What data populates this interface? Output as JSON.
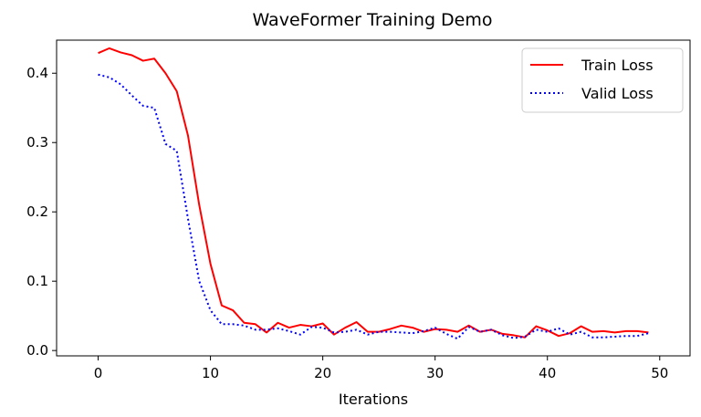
{
  "chart_data": {
    "type": "line",
    "title": "WaveFormer Training Demo",
    "xlabel": "Iterations",
    "ylabel": "",
    "xlim": [
      -3.7,
      52.7
    ],
    "ylim": [
      -0.0077,
      0.4477
    ],
    "xticks": [
      0,
      10,
      20,
      30,
      40,
      50
    ],
    "yticks": [
      0.0,
      0.1,
      0.2,
      0.3,
      0.4
    ],
    "ytick_labels": [
      "0.0",
      "0.1",
      "0.2",
      "0.3",
      "0.4"
    ],
    "grid": false,
    "legend_position": "top-right",
    "x": [
      0,
      1,
      2,
      3,
      4,
      5,
      6,
      7,
      8,
      9,
      10,
      11,
      12,
      13,
      14,
      15,
      16,
      17,
      18,
      19,
      20,
      21,
      22,
      23,
      24,
      25,
      26,
      27,
      28,
      29,
      30,
      31,
      32,
      33,
      34,
      35,
      36,
      37,
      38,
      39,
      40,
      41,
      42,
      43,
      44,
      45,
      46,
      47,
      48,
      49
    ],
    "series": [
      {
        "name": "Train Loss",
        "color": "#ff0000",
        "style": "solid",
        "values": [
          0.429,
          0.436,
          0.43,
          0.426,
          0.418,
          0.421,
          0.4,
          0.374,
          0.31,
          0.21,
          0.125,
          0.065,
          0.058,
          0.04,
          0.038,
          0.026,
          0.04,
          0.033,
          0.037,
          0.035,
          0.039,
          0.023,
          0.033,
          0.041,
          0.027,
          0.027,
          0.031,
          0.036,
          0.033,
          0.027,
          0.031,
          0.03,
          0.027,
          0.036,
          0.027,
          0.03,
          0.024,
          0.022,
          0.019,
          0.035,
          0.029,
          0.021,
          0.025,
          0.035,
          0.027,
          0.028,
          0.026,
          0.028,
          0.028,
          0.026
        ]
      },
      {
        "name": "Valid Loss",
        "color": "#0000ff",
        "style": "dotted",
        "values": [
          0.398,
          0.394,
          0.384,
          0.368,
          0.353,
          0.35,
          0.298,
          0.288,
          0.19,
          0.1,
          0.058,
          0.038,
          0.038,
          0.036,
          0.03,
          0.03,
          0.032,
          0.028,
          0.023,
          0.034,
          0.033,
          0.026,
          0.027,
          0.03,
          0.023,
          0.027,
          0.027,
          0.026,
          0.025,
          0.028,
          0.033,
          0.024,
          0.017,
          0.034,
          0.027,
          0.03,
          0.022,
          0.018,
          0.02,
          0.03,
          0.027,
          0.032,
          0.023,
          0.027,
          0.019,
          0.019,
          0.02,
          0.021,
          0.021,
          0.025
        ]
      }
    ]
  }
}
